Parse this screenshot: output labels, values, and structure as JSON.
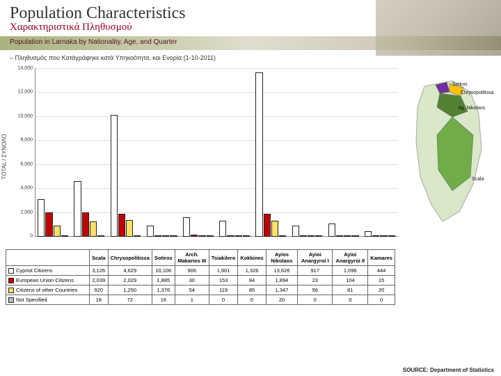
{
  "header": {
    "title_en": "Population Characteristics",
    "title_gr": "Χαρακτηριστικά Πληθυσμού",
    "subtitle": "Population in Larnaka by Nationality, Age, and Quarter",
    "desc": "– Πληθυσμός που Κατάγράφηκε κατά Υπηκοότητα, και Ενορία (1-10-2011)"
  },
  "chart": {
    "type": "bar",
    "y_label": "TOTAL / ΣΥΝΟΛΟ",
    "ylim": [
      0,
      14000
    ],
    "ytick_step": 2000,
    "ytick_labels": [
      "0",
      "2,000",
      "4,000",
      "6,000",
      "8,000",
      "10,000",
      "12,000",
      "14,000"
    ],
    "categories": [
      "Scala",
      "Chrysopolitissa",
      "Sotiros",
      "Arch. Makarios III",
      "Tsiakilero",
      "Kokkines",
      "Ayios Nikolaos",
      "Ayioi Anargyroi I",
      "Ayioi Anargyroi II",
      "Kamares"
    ],
    "series": [
      {
        "name": "Cypriot Citizens",
        "color": "#ffffff",
        "values": [
          3126,
          4629,
          10106,
          906,
          1601,
          1326,
          13626,
          917,
          1096,
          444
        ]
      },
      {
        "name": "European Union Citizens",
        "color": "#c00000",
        "values": [
          2039,
          2029,
          1885,
          30,
          153,
          84,
          1894,
          23,
          104,
          15
        ]
      },
      {
        "name": "Citizens of other Countries",
        "color": "#ffe066",
        "values": [
          920,
          1250,
          1376,
          54,
          119,
          85,
          1347,
          56,
          81,
          20
        ]
      },
      {
        "name": "Not Specified",
        "color": "#bfbfbf",
        "values": [
          18,
          72,
          16,
          1,
          0,
          0,
          20,
          0,
          0,
          0
        ]
      }
    ]
  },
  "table_values": {
    "r0": [
      "3,126",
      "4,629",
      "10,106",
      "906",
      "1,601",
      "1,326",
      "13,626",
      "917",
      "1,096",
      "444"
    ],
    "r1": [
      "2,039",
      "2,029",
      "1,885",
      "30",
      "153",
      "84",
      "1,894",
      "23",
      "104",
      "15"
    ],
    "r2": [
      "920",
      "1,250",
      "1,376",
      "54",
      "119",
      "85",
      "1,347",
      "56",
      "81",
      "20"
    ],
    "r3": [
      "18",
      "72",
      "16",
      "1",
      "0",
      "0",
      "20",
      "0",
      "0",
      "0"
    ]
  },
  "map": {
    "labels": {
      "sotiros": "Sotiros",
      "chryso": "Chrysopolitissa",
      "agnik": "Ag. Nikolaos",
      "scala": "Scala"
    },
    "region_colors": {
      "sotiros": "#7030a0",
      "chryso": "#ffc000",
      "agnik": "#548235",
      "scala": "#70ad47",
      "outline": "#a6a6a6",
      "land": "#d8e8c8"
    }
  },
  "source": "SOURCE: Department of Statistics"
}
